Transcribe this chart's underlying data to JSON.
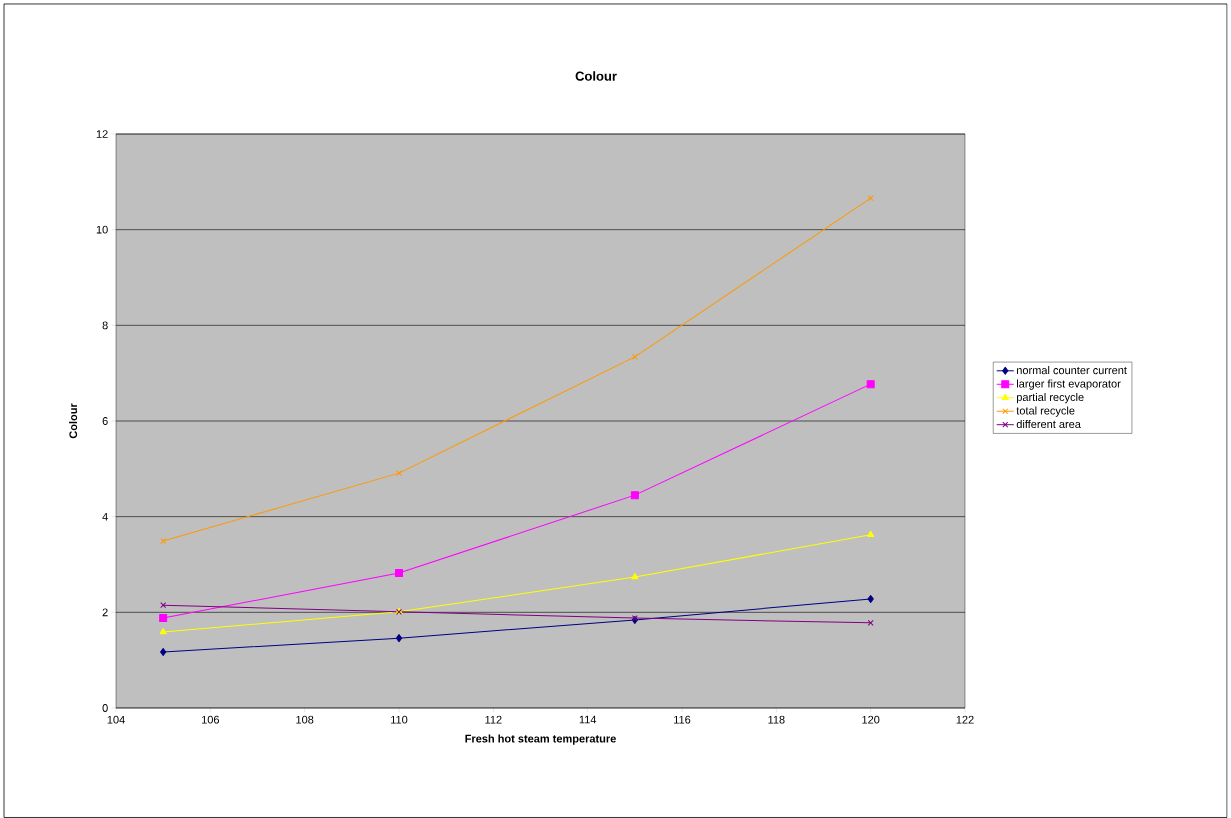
{
  "chart_data": {
    "type": "line",
    "title": "Colour",
    "xlabel": "Fresh hot steam temperature",
    "ylabel": "Colour",
    "x": [
      105,
      110,
      115,
      120
    ],
    "series": [
      {
        "name": "normal counter current",
        "color": "#000080",
        "marker": "diamond",
        "values": [
          1.17,
          1.46,
          1.84,
          2.28
        ]
      },
      {
        "name": "larger first evaporator",
        "color": "#ff00ff",
        "marker": "square",
        "values": [
          1.88,
          2.82,
          4.45,
          6.77
        ]
      },
      {
        "name": "partial recycle",
        "color": "#ffff00",
        "marker": "triangle",
        "values": [
          1.59,
          2.01,
          2.74,
          3.62
        ]
      },
      {
        "name": "total recycle",
        "color": "#ff9900",
        "marker": "cross",
        "values": [
          3.49,
          4.91,
          7.34,
          10.66
        ]
      },
      {
        "name": "different area",
        "color": "#800080",
        "marker": "cross",
        "values": [
          2.15,
          2.01,
          1.88,
          1.78
        ]
      }
    ],
    "xlim": [
      104,
      122
    ],
    "xticks": [
      104,
      106,
      108,
      110,
      112,
      114,
      116,
      118,
      120,
      122
    ],
    "ylim": [
      0,
      12
    ],
    "yticks": [
      0,
      2,
      4,
      6,
      8,
      10,
      12
    ],
    "grid": "y",
    "legend": "right"
  }
}
